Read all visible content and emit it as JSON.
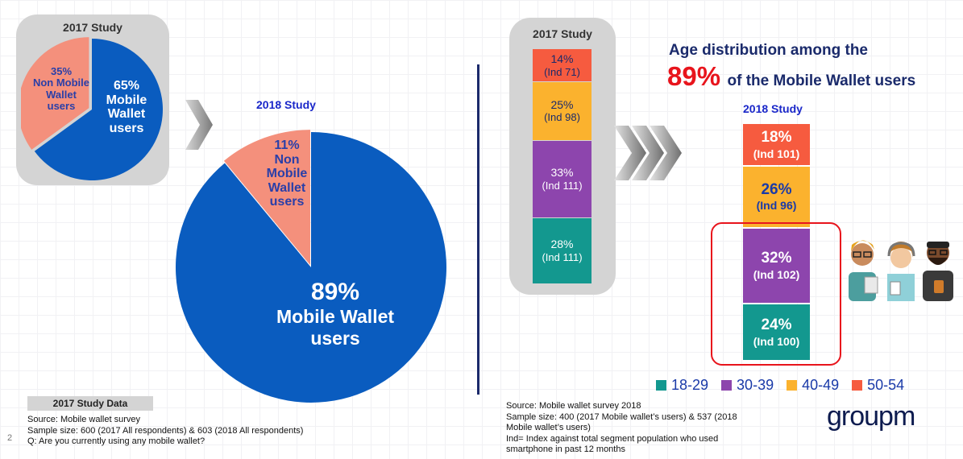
{
  "page_number": "2",
  "left": {
    "study2017_label": "2017 Study",
    "study2018_label": "2018 Study",
    "study_data_label": "2017 Study Data",
    "notes": [
      "Source: Mobile wallet survey",
      "Sample size: 600 (2017 All respondents) & 603 (2018 All respondents)",
      "Q: Are you currently using any mobile wallet?"
    ]
  },
  "right": {
    "study2017_label": "2017 Study",
    "study2018_label": "2018 Study",
    "headline_line1": "Age distribution among the",
    "headline_pct": "89%",
    "headline_rest": "of the Mobile Wallet users",
    "notes": [
      "Source: Mobile wallet survey 2018",
      "Sample size: 400 (2017 Mobile wallet’s users) & 537 (2018",
      "Mobile wallet’s users)",
      "Ind= Index against total segment population who used",
      "smartphone in past 12 months"
    ]
  },
  "logo": "groupm",
  "colors": {
    "blue": "#0a5cbf",
    "salmon": "#f4907c",
    "teal": "#13988f",
    "purple": "#8d45ad",
    "orange": "#fbb22e",
    "red_orange": "#f65b3f",
    "headline_red": "#e8141c"
  },
  "chart_data": [
    {
      "type": "pie",
      "title": "2017 Study",
      "slices": [
        {
          "name": "Mobile Wallet users",
          "value": 65,
          "label_lines": [
            "65%",
            "Mobile",
            "Wallet",
            "users"
          ]
        },
        {
          "name": "Non Mobile Wallet users",
          "value": 35,
          "label_lines": [
            "35%",
            "Non Mobile",
            "Wallet",
            "users"
          ]
        }
      ]
    },
    {
      "type": "pie",
      "title": "2018 Study",
      "slices": [
        {
          "name": "Mobile Wallet users",
          "value": 89,
          "label_lines": [
            "89%",
            "Mobile Wallet",
            "users"
          ]
        },
        {
          "name": "Non Mobile Wallet users",
          "value": 11,
          "label_lines": [
            "11%",
            "Non",
            "Mobile",
            "Wallet",
            "users"
          ]
        }
      ]
    },
    {
      "type": "bar",
      "stacked": true,
      "title": "2017 Study",
      "segments": [
        {
          "name": "18-29",
          "value": 28,
          "label": "28%",
          "index": "(Ind 111)"
        },
        {
          "name": "30-39",
          "value": 33,
          "label": "33%",
          "index": "(Ind 111)"
        },
        {
          "name": "40-49",
          "value": 25,
          "label": "25%",
          "index": "(Ind 98)"
        },
        {
          "name": "50-54",
          "value": 14,
          "label": "14%",
          "index": "(Ind 71)"
        }
      ]
    },
    {
      "type": "bar",
      "stacked": true,
      "title": "2018 Study",
      "segments": [
        {
          "name": "18-29",
          "value": 24,
          "label": "24%",
          "index": "(Ind 100)"
        },
        {
          "name": "30-39",
          "value": 32,
          "label": "32%",
          "index": "(Ind 102)"
        },
        {
          "name": "40-49",
          "value": 26,
          "label": "26%",
          "index": "(Ind 96)"
        },
        {
          "name": "50-54",
          "value": 18,
          "label": "18%",
          "index": "(Ind 101)"
        }
      ],
      "legend": [
        "18-29",
        "30-39",
        "40-49",
        "50-54"
      ],
      "legend_position": "bottom"
    }
  ]
}
